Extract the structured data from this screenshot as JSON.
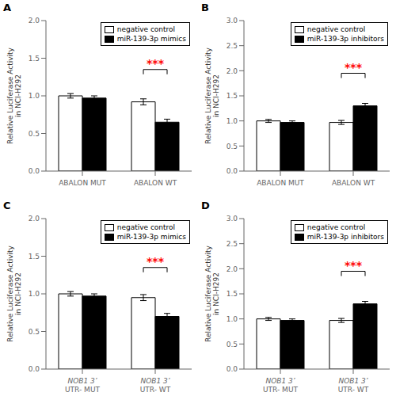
{
  "chart_data": [
    {
      "type": "bar",
      "title": "A",
      "ylabel": "Relative Luciferase Activity\nin NCI-H292",
      "categories": [
        "ABALON MUT",
        "ABALON WT"
      ],
      "series": [
        {
          "name": "negative control",
          "color": "white",
          "values": [
            1.0,
            0.92
          ],
          "errors": [
            0.03,
            0.04
          ]
        },
        {
          "name": "miR-139-3p mimics",
          "color": "black",
          "values": [
            0.97,
            0.65
          ],
          "errors": [
            0.03,
            0.04
          ]
        }
      ],
      "ylim": [
        0,
        2.0
      ],
      "yticks": [
        {
          "value": 0,
          "label": "0.0"
        },
        0.5,
        {
          "value": 1,
          "label": "1.0"
        },
        1.5,
        {
          "value": 2,
          "label": "2.0"
        }
      ],
      "legend": "upper right",
      "grid": false,
      "annotations": [
        {
          "text": "***",
          "category": "ABALON WT",
          "y": 1.35,
          "color": "red"
        }
      ]
    },
    {
      "type": "bar",
      "title": "B",
      "ylabel": "Relative Luciferase Activity\nin NCI-H292",
      "categories": [
        "ABALON MUT",
        "ABALON WT"
      ],
      "series": [
        {
          "name": "negative control",
          "color": "white",
          "values": [
            1.0,
            0.97
          ],
          "errors": [
            0.03,
            0.04
          ]
        },
        {
          "name": "miR-139-3p inhibitors",
          "color": "black",
          "values": [
            0.97,
            1.3
          ],
          "errors": [
            0.03,
            0.05
          ]
        }
      ],
      "ylim": [
        0,
        3.0
      ],
      "yticks": [
        {
          "value": 0,
          "label": "0.0"
        },
        0.5,
        {
          "value": 1,
          "label": "1.0"
        },
        1.5,
        {
          "value": 2,
          "label": "2.0"
        },
        2.5,
        {
          "value": 3,
          "label": "3.0"
        }
      ],
      "legend": "upper right",
      "grid": false,
      "annotations": [
        {
          "text": "***",
          "category": "ABALON WT",
          "y": 1.95,
          "color": "red"
        }
      ]
    },
    {
      "type": "bar",
      "title": "C",
      "ylabel": "Relative Luciferase Activity\nin NCI-H292",
      "categories": [
        "NOB1 3’\nUTR- MUT",
        "NOB1 3’\nUTR- WT"
      ],
      "series": [
        {
          "name": "negative control",
          "color": "white",
          "values": [
            1.0,
            0.95
          ],
          "errors": [
            0.03,
            0.04
          ]
        },
        {
          "name": "miR-139-3p mimics",
          "color": "black",
          "values": [
            0.97,
            0.7
          ],
          "errors": [
            0.03,
            0.04
          ]
        }
      ],
      "ylim": [
        0,
        2.0
      ],
      "yticks": [
        {
          "value": 0,
          "label": "0.0"
        },
        0.5,
        {
          "value": 1,
          "label": "1.0"
        },
        1.5,
        {
          "value": 2,
          "label": "2.0"
        }
      ],
      "legend": "upper right",
      "grid": false,
      "annotations": [
        {
          "text": "***",
          "category": "NOB1 3’\nUTR- WT",
          "y": 1.35,
          "color": "red"
        }
      ]
    },
    {
      "type": "bar",
      "title": "D",
      "ylabel": "Relative Luciferase Activity\nin NCI-H292",
      "categories": [
        "NOB1 3’\nUTR- MUT",
        "NOB1 3’\nUTR- WT"
      ],
      "series": [
        {
          "name": "negative control",
          "color": "white",
          "values": [
            1.0,
            0.97
          ],
          "errors": [
            0.03,
            0.04
          ]
        },
        {
          "name": "miR-139-3p inhibitors",
          "color": "black",
          "values": [
            0.97,
            1.3
          ],
          "errors": [
            0.03,
            0.05
          ]
        }
      ],
      "ylim": [
        0,
        3.0
      ],
      "yticks": [
        {
          "value": 0,
          "label": "0.0"
        },
        0.5,
        {
          "value": 1,
          "label": "1.0"
        },
        1.5,
        {
          "value": 2,
          "label": "2.0"
        },
        2.5,
        {
          "value": 3,
          "label": "3.0"
        }
      ],
      "legend": "upper right",
      "grid": false,
      "annotations": [
        {
          "text": "***",
          "category": "NOB1 3’\nUTR- WT",
          "y": 1.95,
          "color": "red"
        }
      ]
    }
  ]
}
